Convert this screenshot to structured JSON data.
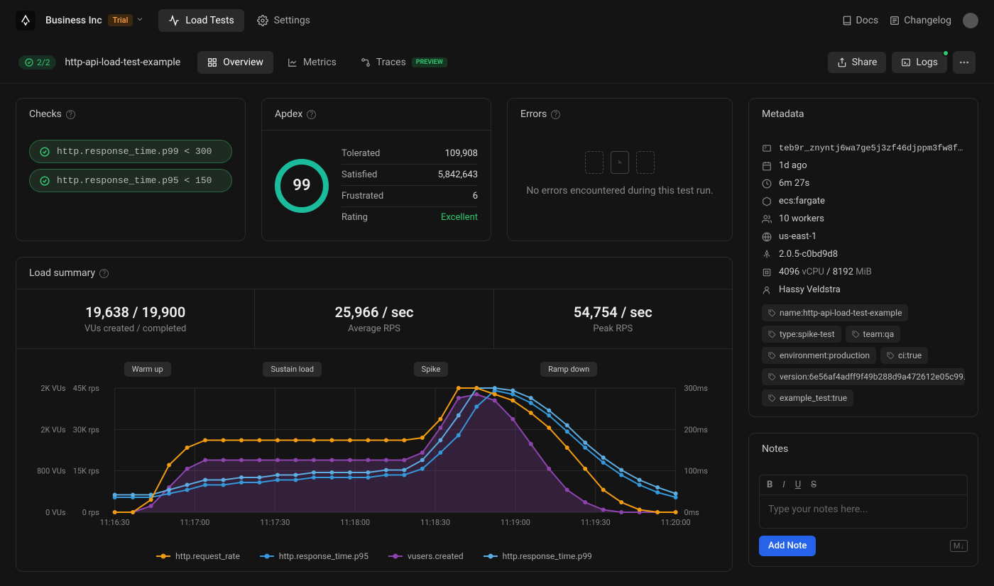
{
  "org": {
    "name": "Business Inc",
    "badge": "Trial"
  },
  "nav": {
    "load_tests": "Load Tests",
    "settings": "Settings",
    "docs": "Docs",
    "changelog": "Changelog"
  },
  "sub": {
    "checks_count": "2/2",
    "test_name": "http-api-load-test-example",
    "tabs": {
      "overview": "Overview",
      "metrics": "Metrics",
      "traces": "Traces",
      "preview": "PREVIEW"
    },
    "share": "Share",
    "logs": "Logs"
  },
  "checks": {
    "title": "Checks",
    "items": [
      "http.response_time.p99 < 300",
      "http.response_time.p95 < 150"
    ]
  },
  "apdex": {
    "title": "Apdex",
    "score": "99",
    "rows": [
      {
        "label": "Tolerated",
        "value": "109,908"
      },
      {
        "label": "Satisfied",
        "value": "5,842,643"
      },
      {
        "label": "Frustrated",
        "value": "6"
      },
      {
        "label": "Rating",
        "value": "Excellent",
        "green": true
      }
    ]
  },
  "errors": {
    "title": "Errors",
    "message": "No errors encountered during this test run."
  },
  "summary": {
    "title": "Load summary",
    "stats": [
      {
        "value": "19,638 / 19,900",
        "label": "VUs created / completed"
      },
      {
        "value": "25,966 / sec",
        "label": "Average RPS"
      },
      {
        "value": "54,754 / sec",
        "label": "Peak RPS"
      }
    ],
    "phases": [
      "Warm up",
      "Sustain load",
      "Spike",
      "Ramp down"
    ],
    "chart": {
      "left_axis_labels": [
        "2K VUs",
        "2K VUs",
        "800 VUs",
        "0 VUs"
      ],
      "left_axis_labels2": [
        "45K rps",
        "30K rps",
        "15K rps",
        "0 rps"
      ],
      "right_axis_labels": [
        "300ms",
        "200ms",
        "100ms",
        "0ms"
      ],
      "x_labels": [
        "11:16:30",
        "11:17:00",
        "11:17:30",
        "11:18:00",
        "11:18:30",
        "11:19:00",
        "11:19:30",
        "11:20:00"
      ],
      "colors": {
        "request_rate": "#f39c12",
        "p95": "#3498db",
        "vusers": "#8e44ad",
        "p99": "#5dade2",
        "grid": "#2a2a2a"
      },
      "series": {
        "request_rate": [
          0,
          0,
          10,
          38,
          52,
          58,
          58,
          58,
          58,
          58,
          58,
          58,
          58,
          58,
          58,
          58,
          58,
          60,
          75,
          100,
          100,
          95,
          90,
          80,
          68,
          52,
          35,
          18,
          8,
          2,
          0,
          0
        ],
        "p95": [
          12,
          12,
          12,
          15,
          18,
          22,
          22,
          24,
          24,
          26,
          26,
          28,
          28,
          28,
          28,
          30,
          30,
          35,
          48,
          62,
          85,
          98,
          95,
          88,
          78,
          65,
          52,
          40,
          30,
          22,
          16,
          12
        ],
        "vusers": [
          0,
          0,
          5,
          20,
          35,
          42,
          42,
          42,
          42,
          42,
          42,
          42,
          42,
          42,
          42,
          42,
          42,
          48,
          68,
          92,
          95,
          90,
          75,
          55,
          35,
          18,
          8,
          2,
          0,
          0,
          0,
          0
        ],
        "p99": [
          14,
          14,
          14,
          18,
          22,
          26,
          26,
          28,
          28,
          30,
          30,
          32,
          32,
          32,
          32,
          34,
          34,
          42,
          58,
          78,
          100,
          100,
          98,
          92,
          82,
          70,
          56,
          44,
          34,
          26,
          20,
          15
        ]
      }
    },
    "legend": [
      {
        "label": "http.request_rate",
        "color": "#f39c12"
      },
      {
        "label": "http.response_time.p95",
        "color": "#3498db"
      },
      {
        "label": "vusers.created",
        "color": "#8e44ad"
      },
      {
        "label": "http.response_time.p99",
        "color": "#5dade2"
      }
    ]
  },
  "metadata": {
    "title": "Metadata",
    "id": "teb9r_znyntj6wa7ge5j3zf46djppm3fw8f_t…",
    "time_ago": "1d ago",
    "duration": "6m 27s",
    "platform": "ecs:fargate",
    "workers": "10 workers",
    "region": "us-east-1",
    "version": "2.0.5-c0bd9d8",
    "cpu": "4096",
    "cpu_unit": "vCPU",
    "mem": "8192",
    "mem_unit": "MiB",
    "user": "Hassy Veldstra",
    "tags": [
      "name:http-api-load-test-example",
      "type:spike-test",
      "team:qa",
      "environment:production",
      "ci:true",
      "version:6e56af4adff9f49b288d9a472612e05c99…",
      "example_test:true"
    ]
  },
  "notes": {
    "title": "Notes",
    "placeholder": "Type your notes here...",
    "button": "Add Note"
  }
}
